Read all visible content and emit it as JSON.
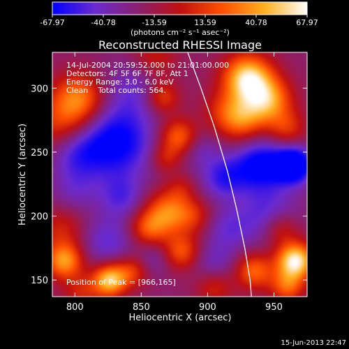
{
  "chart_data": {
    "type": "heatmap",
    "title": "Reconstructed RHESSI Image",
    "xlabel": "Heliocentric X (arcsec)",
    "ylabel": "Heliocentric Y (arcsec)",
    "xlim": [
      783,
      975
    ],
    "ylim": [
      137,
      328
    ],
    "x_ticks": [
      800,
      850,
      900,
      950
    ],
    "y_ticks": [
      150,
      200,
      250,
      300
    ],
    "colorbar": {
      "range": [
        -67.97,
        67.97
      ],
      "ticks": [
        "-67.97",
        "-40.78",
        "-13.59",
        "13.59",
        "40.78",
        "67.97"
      ],
      "unit_label": "(photons cm⁻² s⁻¹ asec⁻²)",
      "colors": [
        "#0000ff",
        "#6a2bd0",
        "#8a2070",
        "#c01010",
        "#ff5000",
        "#ffb020",
        "#ffffff"
      ]
    },
    "annotations": [
      "14-Jul-2004 20:59:52.000 to 21:01:00.000",
      "Detectors: 4F 5F 6F 7F 8F, Att 1",
      "Energy Range: 3.0 - 6.0 keV",
      "Clean    Total counts: 564."
    ],
    "peak_label": "Position of Peak = [966,165]",
    "peak_position": [
      966,
      165
    ],
    "limb_curve": [
      [
        885,
        328
      ],
      [
        895,
        300
      ],
      [
        905,
        270
      ],
      [
        915,
        235
      ],
      [
        922,
        205
      ],
      [
        928,
        175
      ],
      [
        932,
        150
      ],
      [
        933,
        137
      ]
    ],
    "features": [
      {
        "x": 803,
        "y": 292,
        "amp": 1.2,
        "s": 14
      },
      {
        "x": 790,
        "y": 270,
        "amp": 0.8,
        "s": 16
      },
      {
        "x": 860,
        "y": 323,
        "amp": 0.6,
        "s": 12
      },
      {
        "x": 845,
        "y": 300,
        "amp": -0.5,
        "s": 16
      },
      {
        "x": 866,
        "y": 293,
        "amp": 0.9,
        "s": 9
      },
      {
        "x": 830,
        "y": 258,
        "amp": -1.2,
        "s": 20
      },
      {
        "x": 800,
        "y": 250,
        "amp": -0.7,
        "s": 14
      },
      {
        "x": 878,
        "y": 262,
        "amp": 1.1,
        "s": 10
      },
      {
        "x": 868,
        "y": 245,
        "amp": 0.6,
        "s": 8
      },
      {
        "x": 895,
        "y": 252,
        "amp": -0.4,
        "s": 10
      },
      {
        "x": 912,
        "y": 283,
        "amp": 0.5,
        "s": 12
      },
      {
        "x": 930,
        "y": 308,
        "amp": 1.8,
        "s": 13
      },
      {
        "x": 945,
        "y": 290,
        "amp": 1.4,
        "s": 13
      },
      {
        "x": 925,
        "y": 275,
        "amp": 1.0,
        "s": 12
      },
      {
        "x": 960,
        "y": 268,
        "amp": 0.7,
        "s": 10
      },
      {
        "x": 940,
        "y": 240,
        "amp": -1.2,
        "s": 14
      },
      {
        "x": 965,
        "y": 240,
        "amp": -1.6,
        "s": 10
      },
      {
        "x": 912,
        "y": 230,
        "amp": -0.8,
        "s": 12
      },
      {
        "x": 800,
        "y": 220,
        "amp": -0.4,
        "s": 12
      },
      {
        "x": 835,
        "y": 215,
        "amp": -0.6,
        "s": 12
      },
      {
        "x": 870,
        "y": 203,
        "amp": 1.2,
        "s": 12
      },
      {
        "x": 855,
        "y": 190,
        "amp": 0.9,
        "s": 10
      },
      {
        "x": 890,
        "y": 200,
        "amp": 0.6,
        "s": 10
      },
      {
        "x": 915,
        "y": 190,
        "amp": -0.5,
        "s": 12
      },
      {
        "x": 946,
        "y": 200,
        "amp": -0.7,
        "s": 16
      },
      {
        "x": 955,
        "y": 190,
        "amp": 0.8,
        "s": 10
      },
      {
        "x": 790,
        "y": 190,
        "amp": 0.6,
        "s": 12
      },
      {
        "x": 792,
        "y": 165,
        "amp": 1.4,
        "s": 10
      },
      {
        "x": 825,
        "y": 180,
        "amp": -0.6,
        "s": 14
      },
      {
        "x": 826,
        "y": 150,
        "amp": 1.7,
        "s": 9
      },
      {
        "x": 843,
        "y": 157,
        "amp": 0.8,
        "s": 9
      },
      {
        "x": 860,
        "y": 167,
        "amp": -0.4,
        "s": 10
      },
      {
        "x": 880,
        "y": 172,
        "amp": 1.0,
        "s": 10
      },
      {
        "x": 905,
        "y": 162,
        "amp": -0.5,
        "s": 12
      },
      {
        "x": 905,
        "y": 145,
        "amp": 0.7,
        "s": 10
      },
      {
        "x": 935,
        "y": 157,
        "amp": 1.1,
        "s": 10
      },
      {
        "x": 966,
        "y": 165,
        "amp": 2.0,
        "s": 10
      },
      {
        "x": 960,
        "y": 145,
        "amp": 1.0,
        "s": 9
      },
      {
        "x": 880,
        "y": 222,
        "amp": 0.4,
        "s": 8
      },
      {
        "x": 805,
        "y": 140,
        "amp": 0.6,
        "s": 10
      }
    ]
  },
  "footer": {
    "date_stamp": "15-Jun-2013 22:47"
  }
}
